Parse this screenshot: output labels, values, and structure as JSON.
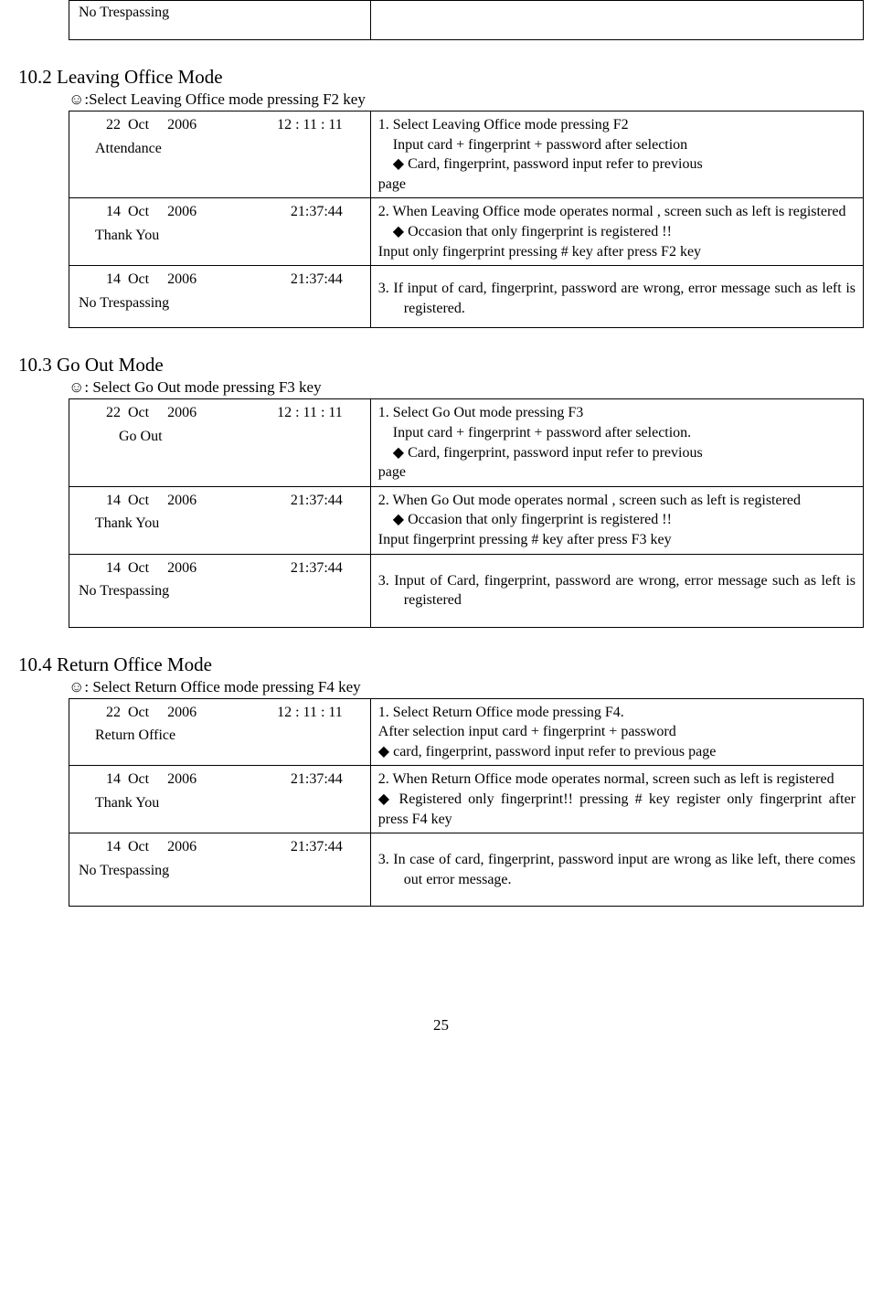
{
  "top_fragment": {
    "left": "No Trespassing",
    "right": ""
  },
  "page_number": "25",
  "sections": [
    {
      "id": "s102",
      "heading": "10.2 Leaving Office Mode",
      "intro": "☺:Select Leaving Office mode pressing F2 key",
      "rows": [
        {
          "date_left": "22  Oct     2006",
          "date_right": "12 : 11 : 11",
          "label": "Attendance",
          "desc_html": "<p>1. Select Leaving Office mode pressing F2</p><p class='indent1'>Input card +  fingerprint +  password after selection</p><p class='indent1'>◆ Card, fingerprint, password input refer to previous</p><p>page</p>"
        },
        {
          "date_left": "14  Oct     2006",
          "date_right": "21:37:44",
          "label": "Thank You",
          "desc_html": "<p class='justify'>2. When Leaving Office mode operates normal , screen such as left is registered</p><p class='indent1'>◆ Occasion that only fingerprint is registered !!</p><p>Input only fingerprint pressing # key after press F2 key</p>"
        },
        {
          "date_left": "14  Oct     2006",
          "date_right": "21:37:44",
          "label": "No Trespassing",
          "label_left": true,
          "desc_html": "<p class='hang' style='margin-top:10px;margin-bottom:6px;'>3.  If  input  of  card,  fingerprint,  password  are  wrong, error message such as left is registered.</p>"
        }
      ]
    },
    {
      "id": "s103",
      "heading": "10.3 Go Out Mode",
      "intro": "☺: Select   Go Out mode pressing F3 key",
      "rows": [
        {
          "date_left": "22  Oct     2006",
          "date_right": "12 : 11 : 11",
          "label": "Go Out",
          "label_indent": "44px",
          "desc_html": "<p>1. Select Go Out mode pressing F3</p><p class='indent1'>Input card +  fingerprint +  password after selection.</p><p class='indent1'>◆ Card, fingerprint, password input refer to previous</p><p>page</p>"
        },
        {
          "date_left": "14  Oct     2006",
          "date_right": "21:37:44",
          "label": "Thank You",
          "desc_html": "<p class='justify'>2. When Go Out mode operates normal , screen such as left is registered</p><p class='indent1'>◆ Occasion that only fingerprint is registered !!</p><p>Input fingerprint pressing # key after press F3 key</p>"
        },
        {
          "date_left": "14  Oct     2006",
          "date_right": "21:37:44",
          "label": "No Trespassing",
          "label_left": true,
          "pad_bottom": true,
          "desc_html": "<p class='hang' style='margin-top:14px;margin-bottom:14px;'>3.  Input  of  Card,  fingerprint,  password    are  wrong, error message such as left is registered</p>"
        }
      ]
    },
    {
      "id": "s104",
      "heading": "10.4 Return Office Mode",
      "intro": "☺: Select Return Office mode pressing F4 key",
      "rows": [
        {
          "date_left": "22  Oct     2006",
          "date_right": "12 : 11 : 11",
          "label": "Return Office",
          "desc_html": "<p>1. Select Return Office mode pressing F4.</p><p>After selection input card +  fingerprint +  password</p><p class='justify'>◆  card,  fingerprint,  password  input  refer  to  previous page</p>"
        },
        {
          "date_left": "14  Oct     2006",
          "date_right": "21:37:44",
          "label": "Thank You",
          "desc_html": "<p class='justify'>2.  When  Return  Office  mode  operates  normal,  screen such as left is registered</p><p class='justify'>◆ Registered only fingerprint!! pressing # key register only fingerprint after press F4 key</p>"
        },
        {
          "date_left": "14  Oct     2006",
          "date_right": "21:37:44",
          "label": "No Trespassing",
          "label_left": true,
          "pad_bottom": true,
          "desc_html": "<p class='hang' style='margin-top:14px;margin-bottom:14px;'>3.  In  case  of    card,  fingerprint,  password  input  are wrong as like left, there comes out error message.</p>"
        }
      ]
    }
  ]
}
